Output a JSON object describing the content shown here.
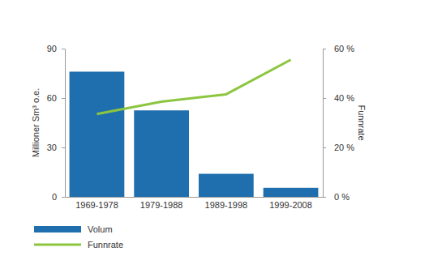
{
  "chart_data": {
    "type": "bar",
    "categories": [
      "1969-1978",
      "1979-1988",
      "1989-1998",
      "1999-2008"
    ],
    "series": [
      {
        "name": "Volum",
        "type": "bar",
        "color": "#1f6fae",
        "values": [
          76,
          52.5,
          14,
          5.5
        ]
      },
      {
        "name": "Funnrate",
        "type": "line",
        "axis": "y2",
        "color": "#8cc63f",
        "values": [
          33.5,
          38.5,
          41.5,
          55.5
        ]
      }
    ],
    "y_label": "Millioner Sm³ o.e.",
    "y2_label": "Funnrate",
    "ylim": [
      0,
      90
    ],
    "yticks": [
      0,
      30,
      60,
      90
    ],
    "y2lim": [
      0,
      60
    ],
    "y2ticks": [
      {
        "value": 0,
        "label": "0 %"
      },
      {
        "value": 20,
        "label": "20 %"
      },
      {
        "value": 40,
        "label": "40 %"
      },
      {
        "value": 60,
        "label": "60 %"
      }
    ],
    "grid": false,
    "legend": "bottom-left"
  }
}
